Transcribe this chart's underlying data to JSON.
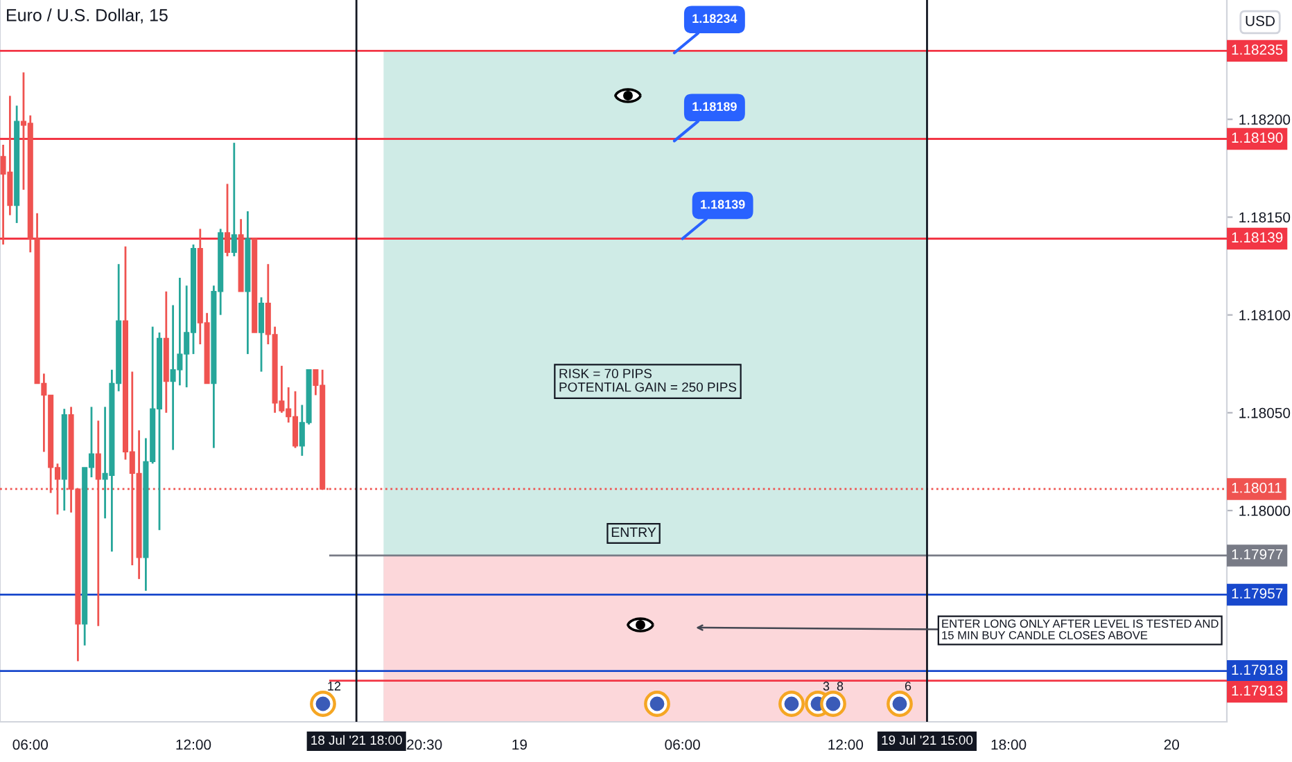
{
  "chart_data": [
    {
      "type": "candlestick",
      "title": "Euro / U.S. Dollar, 15",
      "x": [
        "2021-07-16T05:00",
        "2021-07-16T05:15",
        "2021-07-16T05:30",
        "2021-07-16T05:45",
        "2021-07-16T06:00",
        "2021-07-16T06:15",
        "2021-07-16T06:30",
        "2021-07-16T06:45",
        "2021-07-16T07:00",
        "2021-07-16T07:15",
        "2021-07-16T07:30",
        "2021-07-16T07:45",
        "2021-07-16T08:00",
        "2021-07-16T08:15",
        "2021-07-16T08:30",
        "2021-07-16T08:45",
        "2021-07-16T09:00",
        "2021-07-16T09:15",
        "2021-07-16T09:30",
        "2021-07-16T09:45",
        "2021-07-16T10:00",
        "2021-07-16T10:15",
        "2021-07-16T10:30",
        "2021-07-16T10:45",
        "2021-07-16T11:00",
        "2021-07-16T11:15",
        "2021-07-16T11:30",
        "2021-07-16T11:45",
        "2021-07-16T12:00",
        "2021-07-16T12:15",
        "2021-07-16T12:30",
        "2021-07-16T12:45",
        "2021-07-16T13:00",
        "2021-07-16T13:15",
        "2021-07-16T13:30",
        "2021-07-16T13:45",
        "2021-07-16T14:00",
        "2021-07-16T14:15",
        "2021-07-16T14:30",
        "2021-07-16T14:45",
        "2021-07-16T15:00",
        "2021-07-16T15:15",
        "2021-07-16T15:30",
        "2021-07-16T15:45",
        "2021-07-16T16:00",
        "2021-07-16T16:15",
        "2021-07-16T16:30",
        "2021-07-16T16:45"
      ],
      "ohlc": [
        [
          1.18181,
          1.18187,
          1.18136,
          1.18172
        ],
        [
          1.18173,
          1.18212,
          1.18151,
          1.18156
        ],
        [
          1.18156,
          1.18207,
          1.18147,
          1.18199
        ],
        [
          1.18199,
          1.18224,
          1.18164,
          1.18197
        ],
        [
          1.18198,
          1.18202,
          1.18132,
          1.18139
        ],
        [
          1.18139,
          1.18152,
          1.18065,
          1.18065
        ],
        [
          1.18065,
          1.1807,
          1.1803,
          1.18059
        ],
        [
          1.18059,
          1.18059,
          1.18009,
          1.18022
        ],
        [
          1.18022,
          1.18024,
          1.17998,
          1.18016
        ],
        [
          1.18016,
          1.18052,
          1.18,
          1.18049
        ],
        [
          1.18049,
          1.18053,
          1.17999,
          1.18011
        ],
        [
          1.18011,
          1.18011,
          1.17923,
          1.17942
        ],
        [
          1.17942,
          1.18022,
          1.17931,
          1.18022
        ],
        [
          1.18022,
          1.18053,
          1.18017,
          1.18029
        ],
        [
          1.18029,
          1.18046,
          1.17941,
          1.18016
        ],
        [
          1.18016,
          1.18053,
          1.17996,
          1.18019
        ],
        [
          1.18018,
          1.18072,
          1.17979,
          1.18065
        ],
        [
          1.18065,
          1.18126,
          1.18061,
          1.18097
        ],
        [
          1.18097,
          1.18135,
          1.18026,
          1.1803
        ],
        [
          1.1803,
          1.18071,
          1.17972,
          1.18019
        ],
        [
          1.18019,
          1.18041,
          1.17965,
          1.17976
        ],
        [
          1.17976,
          1.18037,
          1.17959,
          1.18025
        ],
        [
          1.18025,
          1.18094,
          1.18024,
          1.18052
        ],
        [
          1.18052,
          1.18091,
          1.1799,
          1.18088
        ],
        [
          1.18088,
          1.18112,
          1.1805,
          1.18066
        ],
        [
          1.18066,
          1.18105,
          1.18031,
          1.18072
        ],
        [
          1.18072,
          1.18119,
          1.18064,
          1.1808
        ],
        [
          1.1808,
          1.18115,
          1.18063,
          1.18091
        ],
        [
          1.18091,
          1.18136,
          1.1808,
          1.18134
        ],
        [
          1.18134,
          1.18144,
          1.18085,
          1.18096
        ],
        [
          1.18096,
          1.18101,
          1.18065,
          1.18065
        ],
        [
          1.18065,
          1.18115,
          1.18032,
          1.18112
        ],
        [
          1.18112,
          1.18144,
          1.181,
          1.18142
        ],
        [
          1.18142,
          1.18167,
          1.1813,
          1.18132
        ],
        [
          1.18132,
          1.18188,
          1.1813,
          1.18141
        ],
        [
          1.18141,
          1.18149,
          1.18112,
          1.18112
        ],
        [
          1.18112,
          1.18153,
          1.1808,
          1.18139
        ],
        [
          1.18139,
          1.18139,
          1.18091,
          1.18091
        ],
        [
          1.18091,
          1.18109,
          1.18071,
          1.18106
        ],
        [
          1.18106,
          1.18126,
          1.18085,
          1.1809
        ],
        [
          1.1809,
          1.18094,
          1.1805,
          1.18055
        ],
        [
          1.18056,
          1.18074,
          1.1805,
          1.18051
        ],
        [
          1.18052,
          1.18063,
          1.18045,
          1.18048
        ],
        [
          1.18048,
          1.18061,
          1.18032,
          1.18033
        ],
        [
          1.18033,
          1.18054,
          1.18028,
          1.18045
        ],
        [
          1.18045,
          1.18072,
          1.18044,
          1.18072
        ],
        [
          1.18072,
          1.18072,
          1.18059,
          1.18064
        ],
        [
          1.18064,
          1.18072,
          1.18011,
          1.18011
        ]
      ],
      "colors": [
        "#ef5350",
        "#ef5350",
        "#26a69a",
        "#ef5350",
        "#ef5350",
        "#ef5350",
        "#ef5350",
        "#ef5350",
        "#ef5350",
        "#26a69a",
        "#ef5350",
        "#ef5350",
        "#26a69a",
        "#26a69a",
        "#ef5350",
        "#26a69a",
        "#26a69a",
        "#26a69a",
        "#ef5350",
        "#ef5350",
        "#ef5350",
        "#26a69a",
        "#26a69a",
        "#26a69a",
        "#ef5350",
        "#26a69a",
        "#26a69a",
        "#26a69a",
        "#26a69a",
        "#ef5350",
        "#ef5350",
        "#26a69a",
        "#26a69a",
        "#ef5350",
        "#26a69a",
        "#ef5350",
        "#26a69a",
        "#ef5350",
        "#26a69a",
        "#ef5350",
        "#ef5350",
        "#ef5350",
        "#ef5350",
        "#ef5350",
        "#26a69a",
        "#26a69a",
        "#ef5350",
        "#ef5350"
      ],
      "xlim": [
        "2021-07-16T04:53",
        "2021-07-16T17:00"
      ],
      "xticks": [
        {
          "value": "2021-07-16T06:00",
          "label": "06:00"
        },
        {
          "value": "2021-07-16T12:00",
          "label": "12:00"
        }
      ],
      "ylim": [
        1.17892,
        1.18261
      ],
      "tick_labels": "x",
      "ref_lines": [
        {
          "axis": "y",
          "value": 1.18235,
          "color": "#f23645"
        },
        {
          "axis": "y",
          "value": 1.1819,
          "color": "#f23645"
        },
        {
          "axis": "y",
          "value": 1.18139,
          "color": "#f23645"
        },
        {
          "axis": "y",
          "value": 1.18011,
          "color": "#ef5350",
          "line_style": "dotted"
        },
        {
          "axis": "y",
          "value": 1.17957,
          "color": "#1848cc"
        },
        {
          "axis": "y",
          "value": 1.17918,
          "color": "#1848cc"
        }
      ]
    },
    {
      "type": "area",
      "ylabel": "USD",
      "series": [
        {
          "x": [
            "2021-07-18T19:00",
            "2021-07-19T15:00"
          ],
          "values": [
            1.18235,
            1.18235
          ],
          "color": "#cfebe6"
        },
        {
          "x": [
            "2021-07-18T19:00",
            "2021-07-19T15:00"
          ],
          "values": [
            1.17977,
            1.17977
          ],
          "color": "#fcd7da"
        }
      ],
      "xlim": [
        "2021-07-18T17:00",
        "2021-07-20T02:02"
      ],
      "xticks": [
        {
          "value": "2021-07-18T20:30",
          "label": "20:30"
        },
        {
          "value": "2021-07-19",
          "label": "19"
        },
        {
          "value": "2021-07-19T06:00",
          "label": "06:00"
        },
        {
          "value": "2021-07-19T12:00",
          "label": "12:00"
        },
        {
          "value": "2021-07-19T18:00",
          "label": "18:00"
        },
        {
          "value": "2021-07-20",
          "label": "20"
        }
      ],
      "ylim": [
        1.17892,
        1.18261
      ],
      "yticks": [
        {
          "value": 1.18,
          "label": "1.18000"
        },
        {
          "value": 1.1805,
          "label": "1.18050"
        },
        {
          "value": 1.181,
          "label": "1.18100"
        },
        {
          "value": 1.1815,
          "label": "1.18150"
        },
        {
          "value": 1.182,
          "label": "1.18200"
        }
      ],
      "ref_lines": [
        {
          "axis": "y",
          "value": 1.18235,
          "label": "1.18235",
          "color": "#f23645"
        },
        {
          "axis": "y",
          "value": 1.1819,
          "label": "1.18190",
          "color": "#f23645"
        },
        {
          "axis": "y",
          "value": 1.18139,
          "label": "1.18139",
          "color": "#f23645"
        },
        {
          "axis": "y",
          "value": 1.18011,
          "label": "1.18011",
          "color": "#ef5350",
          "line_style": "dotted"
        },
        {
          "axis": "y",
          "value": 1.17977,
          "label": "1.17977",
          "color": "#787b86"
        },
        {
          "axis": "y",
          "value": 1.17957,
          "label": "1.17957",
          "color": "#1848cc"
        },
        {
          "axis": "y",
          "value": 1.17918,
          "label": "1.17918",
          "color": "#1848cc"
        },
        {
          "axis": "y",
          "value": 1.17913,
          "label": "1.17913",
          "color": "#f23645"
        },
        {
          "axis": "x",
          "value": "2021-07-18T18:00",
          "label": "18 Jul '21 18:00",
          "color": "#131722"
        },
        {
          "axis": "x",
          "value": "2021-07-19T15:00",
          "label": "19 Jul '21 15:00",
          "color": "#131722"
        }
      ],
      "annotations": [
        {
          "text": "1.18234",
          "x": "2021-07-19T05:42",
          "y": 1.18234
        },
        {
          "text": "1.18189",
          "x": "2021-07-19T05:42",
          "y": 1.18189
        },
        {
          "text": "1.18139",
          "x": "2021-07-19T06:00",
          "y": 1.18139
        },
        "RISK = 70 PIPS\nPOTENTIAL GAIN = 250 PIPS",
        {
          "text": "ENTRY",
          "x": "2021-07-19T04:12",
          "y": 1.17977
        },
        "ENTER LONG ONLY AFTER LEVEL IS TESTED AND\n15 MIN BUY CANDLE CLOSES ABOVE",
        "12",
        "3",
        "8",
        "6"
      ]
    }
  ]
}
